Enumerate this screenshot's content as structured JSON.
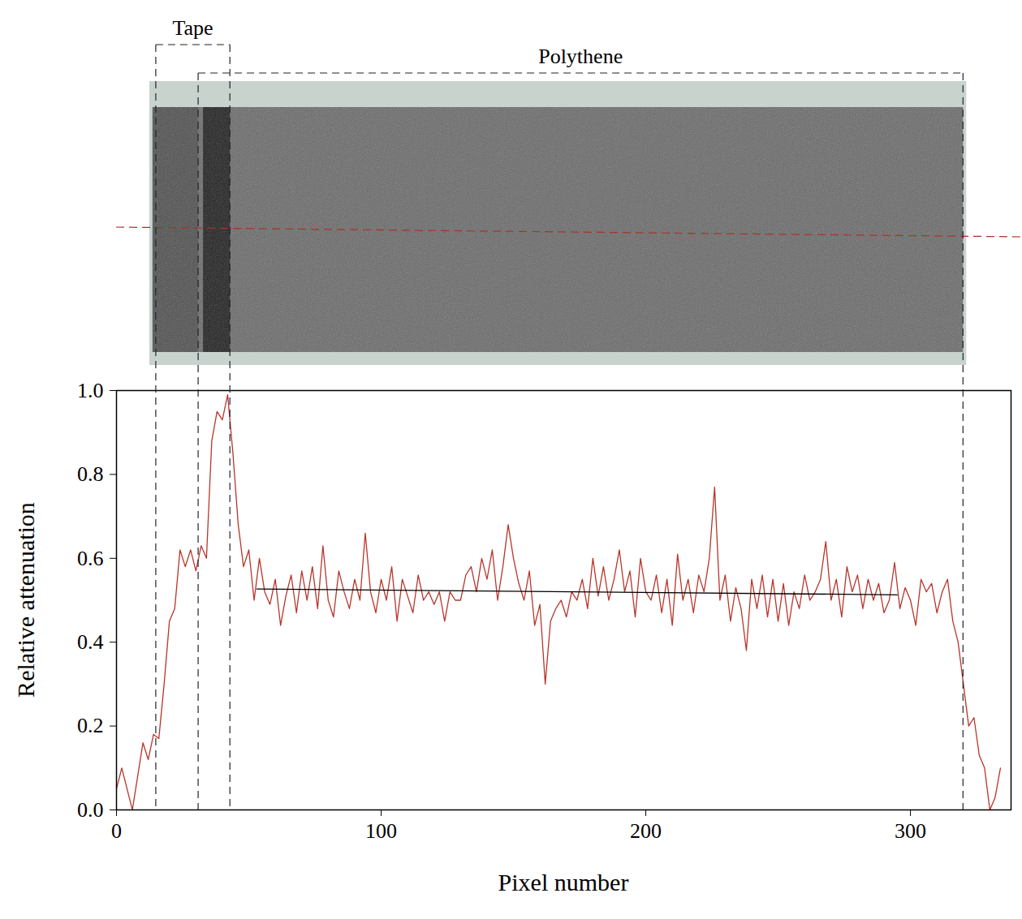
{
  "chart_data": {
    "type": "line",
    "xlabel": "Pixel number",
    "ylabel": "Relative attenuation",
    "xlim": [
      0,
      338
    ],
    "ylim": [
      0,
      1
    ],
    "xticks": [
      0,
      100,
      200,
      300
    ],
    "yticks": [
      {
        "value": 0,
        "label": "0.0"
      },
      0.2,
      0.4,
      0.6,
      0.8,
      {
        "value": 1,
        "label": "1.0"
      }
    ],
    "regions": [
      {
        "label": "Tape",
        "start": 15,
        "end": 43
      },
      {
        "label": "Polythene",
        "start": 31,
        "end": 320
      }
    ],
    "x": [
      0,
      2,
      4,
      6,
      8,
      10,
      12,
      14,
      16,
      18,
      20,
      22,
      24,
      26,
      28,
      30,
      32,
      34,
      36,
      38,
      40,
      42,
      44,
      46,
      48,
      50,
      52,
      54,
      56,
      58,
      60,
      62,
      64,
      66,
      68,
      70,
      72,
      74,
      76,
      78,
      80,
      82,
      84,
      86,
      88,
      90,
      92,
      94,
      96,
      98,
      100,
      102,
      104,
      106,
      108,
      110,
      112,
      114,
      116,
      118,
      120,
      122,
      124,
      126,
      128,
      130,
      132,
      134,
      136,
      138,
      140,
      142,
      144,
      146,
      148,
      150,
      152,
      154,
      156,
      158,
      160,
      162,
      164,
      166,
      168,
      170,
      172,
      174,
      176,
      178,
      180,
      182,
      184,
      186,
      188,
      190,
      192,
      194,
      196,
      198,
      200,
      202,
      204,
      206,
      208,
      210,
      212,
      214,
      216,
      218,
      220,
      222,
      224,
      226,
      228,
      230,
      232,
      234,
      236,
      238,
      240,
      242,
      244,
      246,
      248,
      250,
      252,
      254,
      256,
      258,
      260,
      262,
      264,
      266,
      268,
      270,
      272,
      274,
      276,
      278,
      280,
      282,
      284,
      286,
      288,
      290,
      292,
      294,
      296,
      298,
      300,
      302,
      304,
      306,
      308,
      310,
      312,
      314,
      316,
      318,
      320,
      322,
      324,
      326,
      328,
      330,
      332,
      334
    ],
    "series": [
      {
        "color": "#b8352b",
        "values": [
          0.05,
          0.1,
          0.05,
          0.0,
          0.08,
          0.16,
          0.12,
          0.18,
          0.17,
          0.3,
          0.45,
          0.48,
          0.62,
          0.58,
          0.62,
          0.57,
          0.63,
          0.6,
          0.88,
          0.95,
          0.93,
          0.99,
          0.85,
          0.68,
          0.58,
          0.62,
          0.5,
          0.6,
          0.52,
          0.49,
          0.55,
          0.44,
          0.51,
          0.56,
          0.47,
          0.57,
          0.5,
          0.58,
          0.48,
          0.63,
          0.5,
          0.46,
          0.57,
          0.52,
          0.48,
          0.55,
          0.5,
          0.66,
          0.52,
          0.47,
          0.55,
          0.5,
          0.58,
          0.45,
          0.55,
          0.51,
          0.47,
          0.56,
          0.5,
          0.52,
          0.49,
          0.52,
          0.45,
          0.52,
          0.5,
          0.5,
          0.56,
          0.58,
          0.52,
          0.6,
          0.55,
          0.62,
          0.5,
          0.58,
          0.68,
          0.6,
          0.54,
          0.5,
          0.57,
          0.44,
          0.49,
          0.3,
          0.45,
          0.48,
          0.5,
          0.46,
          0.52,
          0.5,
          0.55,
          0.48,
          0.6,
          0.51,
          0.58,
          0.5,
          0.55,
          0.62,
          0.52,
          0.57,
          0.46,
          0.6,
          0.52,
          0.5,
          0.56,
          0.47,
          0.55,
          0.44,
          0.61,
          0.5,
          0.55,
          0.47,
          0.56,
          0.52,
          0.6,
          0.77,
          0.5,
          0.56,
          0.45,
          0.53,
          0.48,
          0.38,
          0.55,
          0.48,
          0.56,
          0.46,
          0.55,
          0.45,
          0.54,
          0.44,
          0.52,
          0.48,
          0.56,
          0.5,
          0.52,
          0.55,
          0.64,
          0.5,
          0.55,
          0.46,
          0.58,
          0.52,
          0.56,
          0.48,
          0.55,
          0.5,
          0.54,
          0.47,
          0.5,
          0.59,
          0.48,
          0.53,
          0.5,
          0.44,
          0.55,
          0.52,
          0.54,
          0.47,
          0.52,
          0.55,
          0.45,
          0.4,
          0.3,
          0.2,
          0.22,
          0.13,
          0.1,
          0.0,
          0.03,
          0.1
        ]
      },
      {
        "color": "#000000",
        "x": [
          53,
          295
        ],
        "values": [
          0.527,
          0.513
        ]
      }
    ]
  }
}
